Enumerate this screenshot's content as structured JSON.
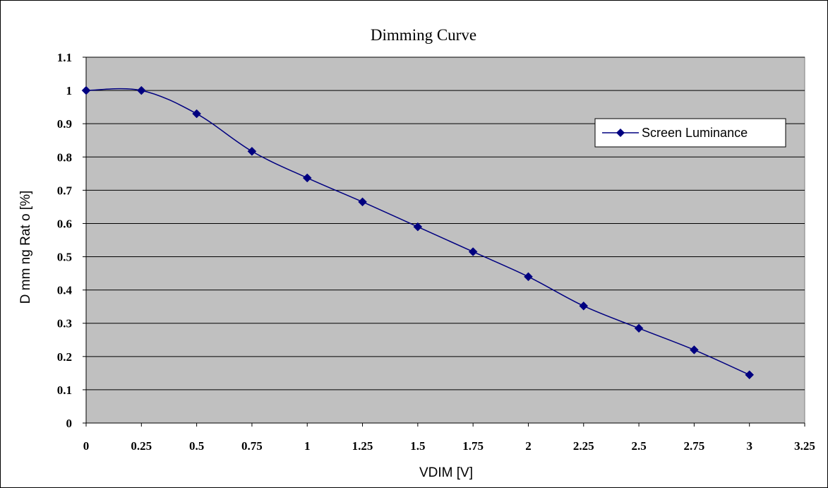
{
  "chart_data": {
    "type": "line",
    "title": "Dimming Curve",
    "xlabel": "VDIM [V]",
    "ylabel": "D mm ng Rat o [%]",
    "xlim": [
      0,
      3.25
    ],
    "ylim": [
      0,
      1.1
    ],
    "x_ticks": [
      "0",
      "0.25",
      "0.5",
      "0.75",
      "1",
      "1.25",
      "1.5",
      "1.75",
      "2",
      "2.25",
      "2.5",
      "2.75",
      "3",
      "3.25"
    ],
    "y_ticks": [
      "0",
      "0.1",
      "0.2",
      "0.3",
      "0.4",
      "0.5",
      "0.6",
      "0.7",
      "0.8",
      "0.9",
      "1",
      "1.1"
    ],
    "grid": true,
    "smooth": true,
    "legend": "right",
    "series": [
      {
        "name": "Screen Luminance",
        "color": "#000080",
        "marker": "diamond",
        "x": [
          0,
          0.25,
          0.5,
          0.75,
          1,
          1.25,
          1.5,
          1.75,
          2,
          2.25,
          2.5,
          2.75,
          3
        ],
        "y": [
          1.0,
          1.0,
          0.93,
          0.817,
          0.737,
          0.665,
          0.59,
          0.515,
          0.44,
          0.352,
          0.285,
          0.22,
          0.145
        ]
      }
    ],
    "colors": {
      "plot_background": "#c0c0c0",
      "gridlines": "#000000",
      "series": "#000080"
    }
  }
}
